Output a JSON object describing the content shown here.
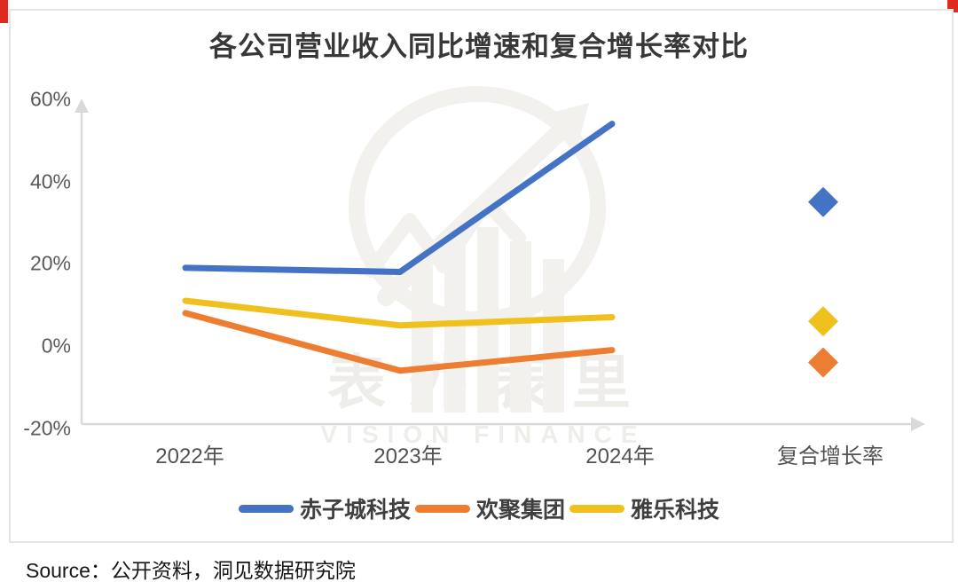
{
  "page": {
    "source_label": "Source：",
    "source_text": "公开资料，洞见数据研究院"
  },
  "watermark": {
    "cn": "表外表里",
    "en": "VISION FINANCE"
  },
  "chart_data": {
    "type": "line",
    "title": "各公司营业收入同比增速和复合增长率对比",
    "categories": [
      "2022年",
      "2023年",
      "2024年"
    ],
    "cagr_category": "复合增长率",
    "series": [
      {
        "name": "赤子城科技",
        "color": "#4472C4",
        "values": [
          19,
          18,
          54
        ],
        "cagr": 35
      },
      {
        "name": "欢聚集团",
        "color": "#ED7D31",
        "values": [
          8,
          -6,
          -1
        ],
        "cagr": -4
      },
      {
        "name": "雅乐科技",
        "color": "#F0C01E",
        "values": [
          11,
          5,
          7
        ],
        "cagr": 6
      }
    ],
    "unit": "%",
    "y_ticks": [
      "60%",
      "40%",
      "20%",
      "0%",
      "-20%"
    ],
    "y_tick_values": [
      60,
      40,
      20,
      0,
      -20
    ],
    "ylim": [
      -20,
      60
    ],
    "xlabel": "",
    "ylabel": "",
    "grid": false,
    "legend_position": "bottom",
    "marker": "diamond",
    "axis_color": "#D9D9D9"
  }
}
